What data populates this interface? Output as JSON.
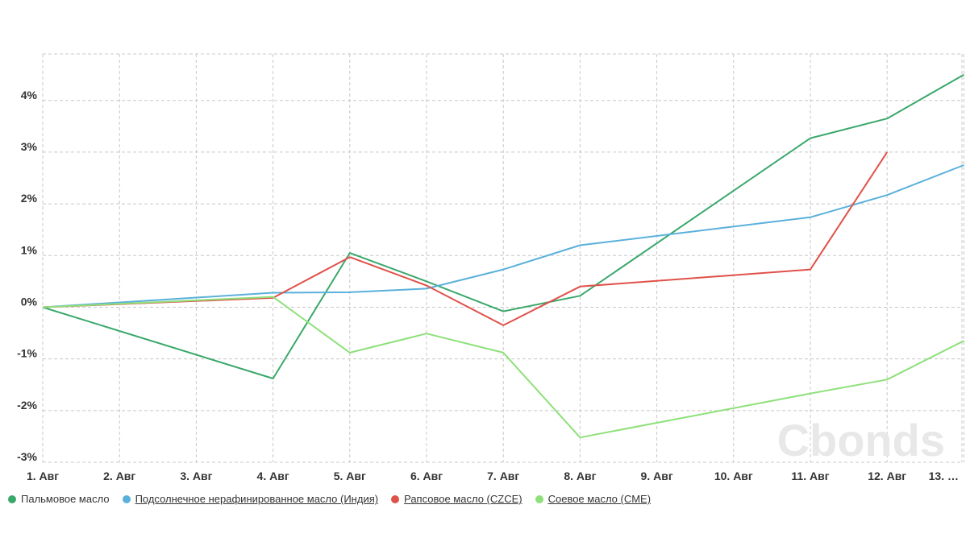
{
  "watermark": "Cbonds",
  "chart_data": {
    "type": "line",
    "categories": [
      "1. Авг",
      "2. Авг",
      "3. Авг",
      "4. Авг",
      "5. Авг",
      "6. Авг",
      "7. Авг",
      "8. Авг",
      "9. Авг",
      "10. Авг",
      "11. Авг",
      "12. Авг",
      "13. Авг"
    ],
    "category_labels": [
      "1. Авг",
      "2. Авг",
      "3. Авг",
      "4. Авг",
      "5. Авг",
      "6. Авг",
      "7. Авг",
      "8. Авг",
      "9. Авг",
      "10. Авг",
      "11. Авг",
      "12. Авг",
      "13. …"
    ],
    "ylim": [
      -3.0,
      4.9
    ],
    "yticks": [
      -3,
      -2,
      -1,
      0,
      1,
      2,
      3,
      4
    ],
    "ytick_labels": [
      "-3%",
      "-2%",
      "-1%",
      "0%",
      "1%",
      "2%",
      "3%",
      "4%"
    ],
    "grid": true,
    "legend_position": "bottom-left",
    "series": [
      {
        "name": "Пальмовое масло",
        "color": "#3aa86b",
        "underline": false,
        "values": [
          0.0,
          null,
          null,
          -1.38,
          1.05,
          0.5,
          -0.08,
          0.22,
          null,
          null,
          3.27,
          3.65,
          4.5
        ]
      },
      {
        "name": "Подсолнечное нерафинированное масло (Индия)",
        "color": "#5ab0db",
        "underline": true,
        "values": [
          0.0,
          null,
          null,
          0.28,
          0.29,
          0.36,
          0.73,
          1.2,
          null,
          null,
          1.74,
          2.17,
          2.75
        ]
      },
      {
        "name": "Рапсовое масло (CZCE)",
        "color": "#e0514a",
        "underline": true,
        "values": [
          0.0,
          null,
          null,
          0.18,
          0.97,
          0.42,
          -0.35,
          0.4,
          null,
          null,
          0.73,
          3.0,
          null
        ]
      },
      {
        "name": "Соевое масло (CME)",
        "color": "#8ee07a",
        "underline": true,
        "values": [
          0.0,
          null,
          null,
          0.2,
          -0.88,
          -0.51,
          -0.88,
          -2.52,
          null,
          null,
          -1.67,
          -1.4,
          -0.65
        ]
      }
    ]
  }
}
